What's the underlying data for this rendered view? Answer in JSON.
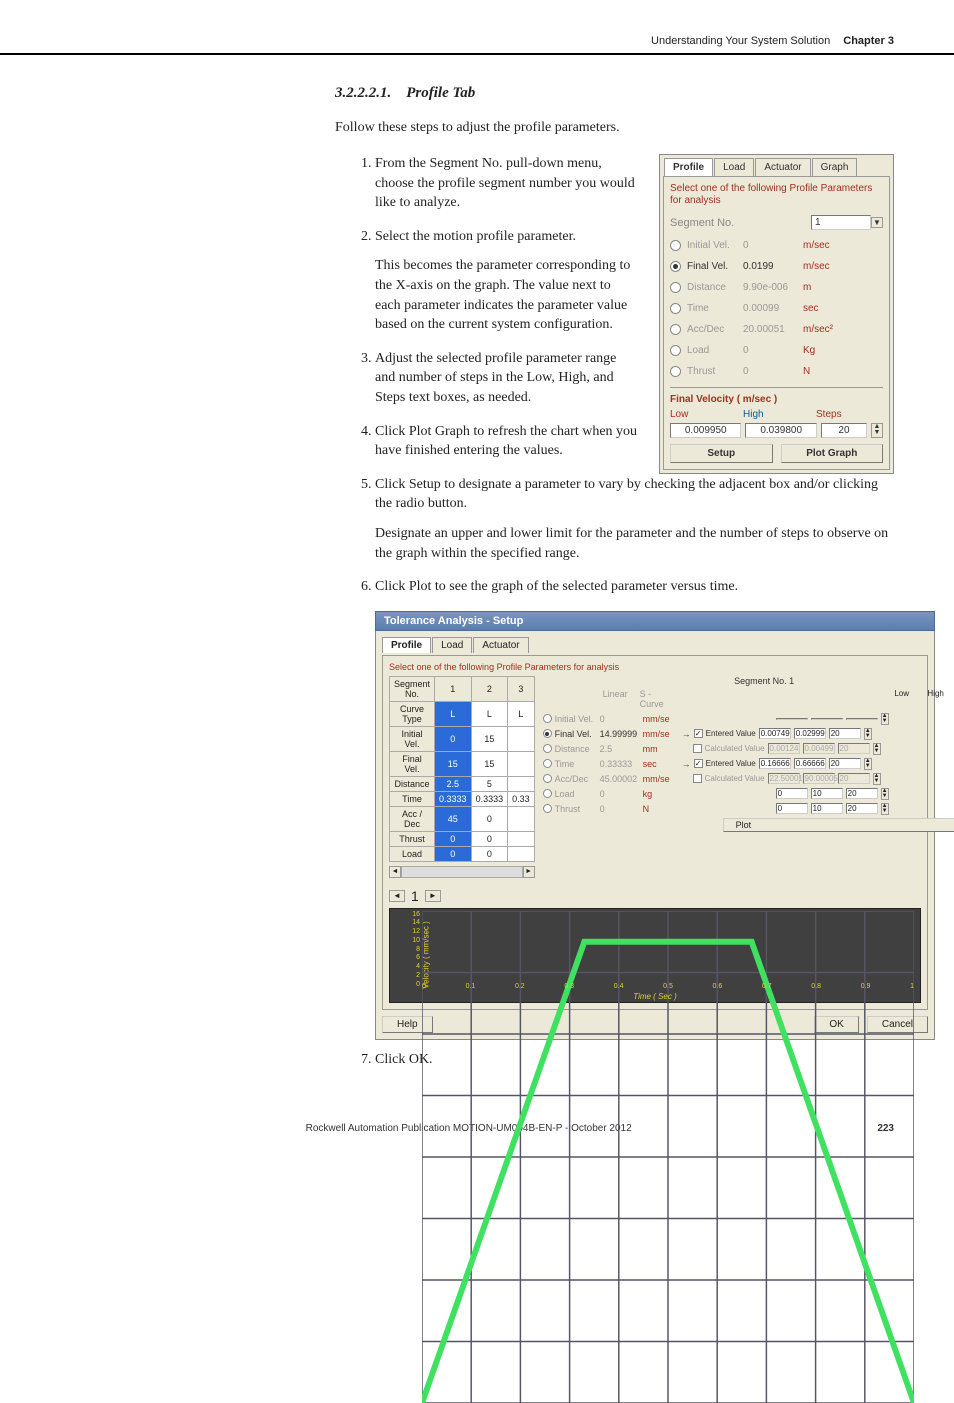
{
  "header": {
    "doc_title": "Understanding Your System Solution",
    "chapter": "Chapter 3"
  },
  "section": {
    "number": "3.2.2.2.1.",
    "title": "Profile Tab"
  },
  "intro": "Follow these steps to adjust the profile parameters.",
  "steps": {
    "s1": "From the Segment No. pull-down menu, choose the profile segment number you would like to analyze.",
    "s2": "Select the motion profile parameter.",
    "s2b": "This becomes the parameter corresponding to the X-axis on the graph. The value next to each parameter indicates the parameter value based on the current system configuration.",
    "s3": "Adjust the selected profile parameter range and number of steps in the Low, High, and Steps text boxes, as needed.",
    "s4": "Click Plot Graph to refresh the chart when you have finished entering the values.",
    "s5": "Click Setup to designate a parameter to vary by checking the adjacent box and/or clicking the radio button.",
    "s5b": "Designate an upper and lower limit for the parameter and the number of steps to observe on the graph within the specified range.",
    "s6": "Click Plot to see the graph of the selected parameter versus time.",
    "s7": "Click OK."
  },
  "panel": {
    "tabs": {
      "t1": "Profile",
      "t2": "Load",
      "t3": "Actuator",
      "t4": "Graph"
    },
    "caption": "Select one of the following Profile Parameters for analysis",
    "segment_label": "Segment No.",
    "segment_value": "1",
    "params": [
      {
        "label": "Initial Vel.",
        "value": "0",
        "unit": "m/sec",
        "selected": false
      },
      {
        "label": "Final Vel.",
        "value": "0.0199",
        "unit": "m/sec",
        "selected": true
      },
      {
        "label": "Distance",
        "value": "9.90e-006",
        "unit": "m",
        "selected": false
      },
      {
        "label": "Time",
        "value": "0.00099",
        "unit": "sec",
        "selected": false
      },
      {
        "label": "Acc/Dec",
        "value": "20.00051",
        "unit": "m/sec²",
        "selected": false
      },
      {
        "label": "Load",
        "value": "0",
        "unit": "Kg",
        "selected": false
      },
      {
        "label": "Thrust",
        "value": "0",
        "unit": "N",
        "selected": false
      }
    ],
    "range": {
      "title": "Final Velocity ( m/sec )",
      "h_low": "Low",
      "h_high": "High",
      "h_steps": "Steps",
      "low": "0.009950",
      "high": "0.039800",
      "steps": "20"
    },
    "btn_setup": "Setup",
    "btn_plot": "Plot Graph"
  },
  "dialog": {
    "title": "Tolerance Analysis - Setup",
    "tabs": {
      "t1": "Profile",
      "t2": "Load",
      "t3": "Actuator"
    },
    "caption": "Select one of the following Profile Parameters for analysis",
    "table": {
      "headers": [
        "Segment No.",
        "1",
        "2",
        "3"
      ],
      "rows": [
        {
          "label": "Curve Type",
          "c1": "L",
          "c2": "L",
          "c3": "L"
        },
        {
          "label": "Initial Vel.",
          "c1": "0",
          "c2": "15",
          "c3": ""
        },
        {
          "label": "Final Vel.",
          "c1": "15",
          "c2": "15",
          "c3": ""
        },
        {
          "label": "Distance",
          "c1": "2.5",
          "c2": "5",
          "c3": ""
        },
        {
          "label": "Time",
          "c1": "0.3333",
          "c2": "0.3333",
          "c3": "0.33"
        },
        {
          "label": "Acc / Dec",
          "c1": "45",
          "c2": "0",
          "c3": ""
        },
        {
          "label": "Thrust",
          "c1": "0",
          "c2": "0",
          "c3": ""
        },
        {
          "label": "Load",
          "c1": "0",
          "c2": "0",
          "c3": ""
        }
      ],
      "selected_col": 1
    },
    "right": {
      "title": "Segment No. 1",
      "curve_linear": "Linear",
      "curve_scurve": "S - Curve",
      "h_low": "Low",
      "h_high": "High",
      "h_steps": "Steps",
      "rows": [
        {
          "label": "Initial Vel.",
          "value": "0",
          "unit": "mm/se",
          "chk": false,
          "chk_label": "",
          "low": "",
          "high": "",
          "steps": "",
          "selected": false,
          "disabled": true
        },
        {
          "label": "Final Vel.",
          "value": "14.99999",
          "unit": "mm/se",
          "chk": true,
          "chk_label": "Entered Value",
          "low": "0.00749",
          "high": "0.02999",
          "steps": "20",
          "selected": true,
          "disabled": false
        },
        {
          "label": "Distance",
          "value": "2.5",
          "unit": "mm",
          "chk": false,
          "chk_label": "Calculated Value",
          "low": "0.00124",
          "high": "0.00499",
          "steps": "20",
          "selected": false,
          "disabled": true
        },
        {
          "label": "Time",
          "value": "0.33333",
          "unit": "sec",
          "chk": true,
          "chk_label": "Entered Value",
          "low": "0.16666",
          "high": "0.66666",
          "steps": "20",
          "selected": false,
          "disabled": false
        },
        {
          "label": "Acc/Dec",
          "value": "45.00002",
          "unit": "mm/se",
          "chk": false,
          "chk_label": "Calculated Value",
          "low": "22.50001",
          "high": "90.00005",
          "steps": "20",
          "selected": false,
          "disabled": true
        },
        {
          "label": "Load",
          "value": "0",
          "unit": "kg",
          "chk": false,
          "chk_label": "",
          "low": "0",
          "high": "10",
          "steps": "20",
          "selected": false,
          "disabled": false
        },
        {
          "label": "Thrust",
          "value": "0",
          "unit": "N",
          "chk": false,
          "chk_label": "",
          "low": "0",
          "high": "10",
          "steps": "20",
          "selected": false,
          "disabled": false
        }
      ],
      "plot_btn": "Plot"
    },
    "pager": {
      "prev": "◄",
      "page": "1",
      "next": "►"
    },
    "chart": {
      "ylabel": "Velocity ( mm/sec )",
      "xlabel": "Time ( Sec )",
      "yticks": [
        "16",
        "14",
        "12",
        "10",
        "8",
        "6",
        "4",
        "2",
        "0"
      ],
      "xticks": [
        "0",
        "0.1",
        "0.2",
        "0.3",
        "0.4",
        "0.5",
        "0.6",
        "0.7",
        "0.8",
        "0.9",
        "1"
      ],
      "line_color": "#40e060",
      "grid_color": "#556",
      "bg_color": "#404040",
      "text_color": "#e0d030",
      "series": [
        [
          0,
          0
        ],
        [
          0.33,
          15
        ],
        [
          0.67,
          15
        ],
        [
          1.0,
          0
        ]
      ]
    },
    "btn_help": "Help",
    "btn_ok": "OK",
    "btn_cancel": "Cancel"
  },
  "footer": {
    "pub": "Rockwell Automation Publication MOTION-UM004B-EN-P - October 2012",
    "page": "223"
  }
}
